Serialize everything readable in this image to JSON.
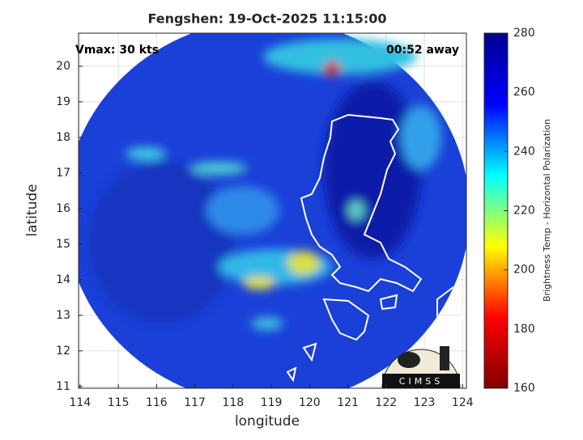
{
  "chart_data": {
    "type": "map",
    "title": "Fengshen: 19-Oct-2025 11:15:00",
    "annotations": [
      "Vmax: 30 kts",
      "00:52 away"
    ],
    "xlabel": "longitude",
    "ylabel": "latitude",
    "xlim": [
      113.96,
      124.1
    ],
    "ylim": [
      10.95,
      20.93
    ],
    "xticks": [
      114,
      115,
      116,
      117,
      118,
      119,
      120,
      121,
      122,
      123,
      124
    ],
    "yticks": [
      11,
      12,
      13,
      14,
      15,
      16,
      17,
      18,
      19,
      20
    ],
    "grid": true,
    "colorbar": {
      "label": "Brightness Temp - Horizontal Polarization",
      "clim": [
        160,
        280
      ],
      "ticks": [
        160,
        180,
        200,
        220,
        240,
        260,
        280
      ],
      "colormap": [
        "#800000",
        "#ff0000",
        "#ffff00",
        "#00ffff",
        "#0000ff",
        "#00008f"
      ]
    },
    "logo": "CIMSS"
  }
}
